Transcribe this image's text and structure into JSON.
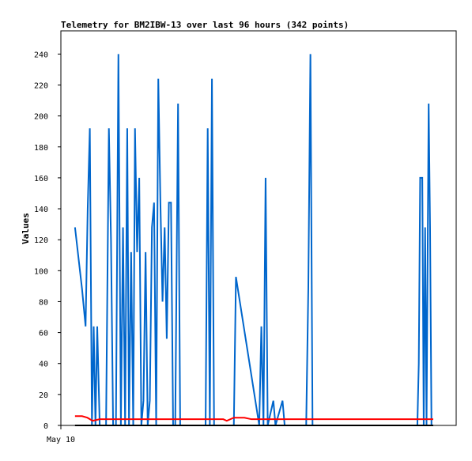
{
  "chart_data": {
    "type": "line",
    "title": "Telemetry for BM2IBW-13 over last 96 hours (342 points)",
    "ylabel": "Values",
    "xlabel": "",
    "x_tick_labels": [
      "May 10"
    ],
    "ylim": [
      0,
      255
    ],
    "y_ticks": [
      0,
      20,
      40,
      60,
      80,
      100,
      120,
      140,
      160,
      180,
      200,
      220,
      240
    ],
    "grid": false,
    "legend": "none",
    "series": [
      {
        "color": "#0066CC",
        "points": [
          [
            0.0,
            128
          ],
          [
            2.0,
            88
          ],
          [
            3.0,
            64
          ],
          [
            3.6,
            140
          ],
          [
            4.2,
            192
          ],
          [
            4.8,
            0
          ],
          [
            5.3,
            64
          ],
          [
            5.8,
            0
          ],
          [
            6.3,
            64
          ],
          [
            7.0,
            0
          ],
          [
            8.8,
            0
          ],
          [
            9.6,
            192
          ],
          [
            10.2,
            120
          ],
          [
            10.8,
            0
          ],
          [
            11.6,
            0
          ],
          [
            12.3,
            240
          ],
          [
            13.0,
            0
          ],
          [
            13.6,
            128
          ],
          [
            14.2,
            0
          ],
          [
            14.8,
            192
          ],
          [
            15.3,
            0
          ],
          [
            15.9,
            112
          ],
          [
            16.5,
            0
          ],
          [
            17.0,
            192
          ],
          [
            17.6,
            112
          ],
          [
            18.2,
            160
          ],
          [
            18.8,
            0
          ],
          [
            19.4,
            16
          ],
          [
            20.0,
            112
          ],
          [
            20.6,
            0
          ],
          [
            21.2,
            16
          ],
          [
            21.8,
            128
          ],
          [
            22.4,
            144
          ],
          [
            23.0,
            0
          ],
          [
            23.6,
            224
          ],
          [
            24.2,
            144
          ],
          [
            24.8,
            80
          ],
          [
            25.4,
            128
          ],
          [
            26.0,
            56
          ],
          [
            26.6,
            144
          ],
          [
            27.2,
            144
          ],
          [
            27.8,
            0
          ],
          [
            28.4,
            0
          ],
          [
            29.2,
            208
          ],
          [
            29.8,
            0
          ],
          [
            30.4,
            0
          ],
          [
            37.0,
            0
          ],
          [
            37.6,
            192
          ],
          [
            38.2,
            0
          ],
          [
            38.8,
            224
          ],
          [
            39.4,
            0
          ],
          [
            40.0,
            0
          ],
          [
            40.6,
            0
          ],
          [
            41.2,
            0
          ],
          [
            45.0,
            0
          ],
          [
            45.6,
            96
          ],
          [
            52.2,
            0
          ],
          [
            52.8,
            64
          ],
          [
            53.4,
            0
          ],
          [
            54.0,
            160
          ],
          [
            54.6,
            0
          ],
          [
            56.2,
            16
          ],
          [
            56.8,
            0
          ],
          [
            58.8,
            16
          ],
          [
            59.4,
            0
          ],
          [
            65.5,
            0
          ],
          [
            66.1,
            88
          ],
          [
            66.7,
            240
          ],
          [
            67.3,
            0
          ],
          [
            97.0,
            0
          ],
          [
            97.4,
            40
          ],
          [
            97.8,
            160
          ],
          [
            98.4,
            160
          ],
          [
            98.8,
            0
          ],
          [
            99.2,
            128
          ],
          [
            99.6,
            0
          ],
          [
            100.2,
            208
          ],
          [
            100.6,
            128
          ],
          [
            101.0,
            0
          ]
        ]
      },
      {
        "color": "#FF0000",
        "points": [
          [
            0.0,
            6
          ],
          [
            2.0,
            6
          ],
          [
            3.5,
            5
          ],
          [
            5.0,
            3
          ],
          [
            7.0,
            4
          ],
          [
            20.0,
            4
          ],
          [
            40.0,
            4
          ],
          [
            42.0,
            4
          ],
          [
            43.0,
            3
          ],
          [
            45.0,
            5
          ],
          [
            48.0,
            5
          ],
          [
            50.0,
            4
          ],
          [
            70.0,
            4
          ],
          [
            90.0,
            4
          ],
          [
            101.5,
            4
          ]
        ]
      },
      {
        "color": "#000000",
        "points": [
          [
            0.0,
            0
          ],
          [
            101.5,
            0
          ]
        ]
      }
    ],
    "xlim": [
      -4,
      108
    ]
  }
}
